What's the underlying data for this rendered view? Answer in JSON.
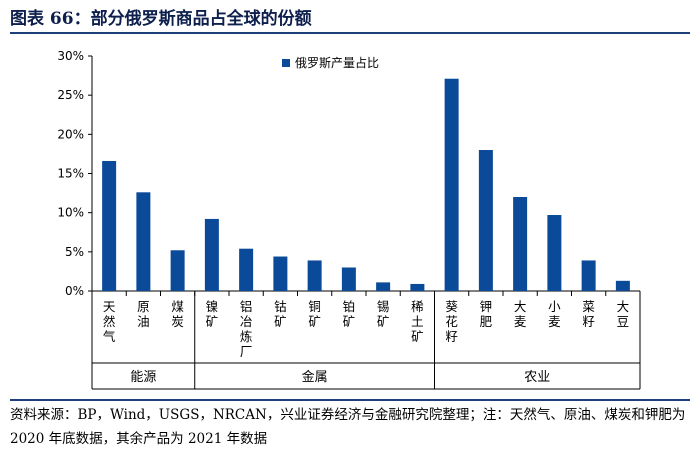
{
  "figure_title": "图表 66：部分俄罗斯商品占全球的份额",
  "source_note": "资料来源：BP，Wind，USGS，NRCAN，兴业证券经济与金融研究院整理；注：天然气、原油、煤炭和钾肥为 2020 年底数据，其余产品为 2021 年数据",
  "colors": {
    "bar": "#0b4a99",
    "axis": "#000000",
    "rule": "#1f3f7a"
  },
  "chart_data": {
    "type": "bar",
    "title": "",
    "ylabel": "",
    "xlabel": "",
    "ylim": [
      0,
      30
    ],
    "yticks": [
      0,
      5,
      10,
      15,
      20,
      25,
      30
    ],
    "ytick_labels": [
      "0%",
      "5%",
      "10%",
      "15%",
      "20%",
      "25%",
      "30%"
    ],
    "legend": "top-center",
    "series": [
      {
        "name": "俄罗斯产量占比",
        "values": [
          16.6,
          12.6,
          5.2,
          9.2,
          5.4,
          4.4,
          3.9,
          3.0,
          1.1,
          0.9,
          27.1,
          18.0,
          12.0,
          9.7,
          3.9,
          1.3
        ]
      }
    ],
    "categories": [
      "天然气",
      "原油",
      "煤炭",
      "镍矿",
      "铝冶炼厂",
      "钴矿",
      "铜矿",
      "铂矿",
      "锡矿",
      "稀土矿",
      "葵花籽",
      "钾肥",
      "大麦",
      "小麦",
      "菜籽",
      "大豆"
    ],
    "groups": [
      {
        "label": "能源",
        "count": 3
      },
      {
        "label": "金属",
        "count": 7
      },
      {
        "label": "农业",
        "count": 6
      }
    ]
  }
}
